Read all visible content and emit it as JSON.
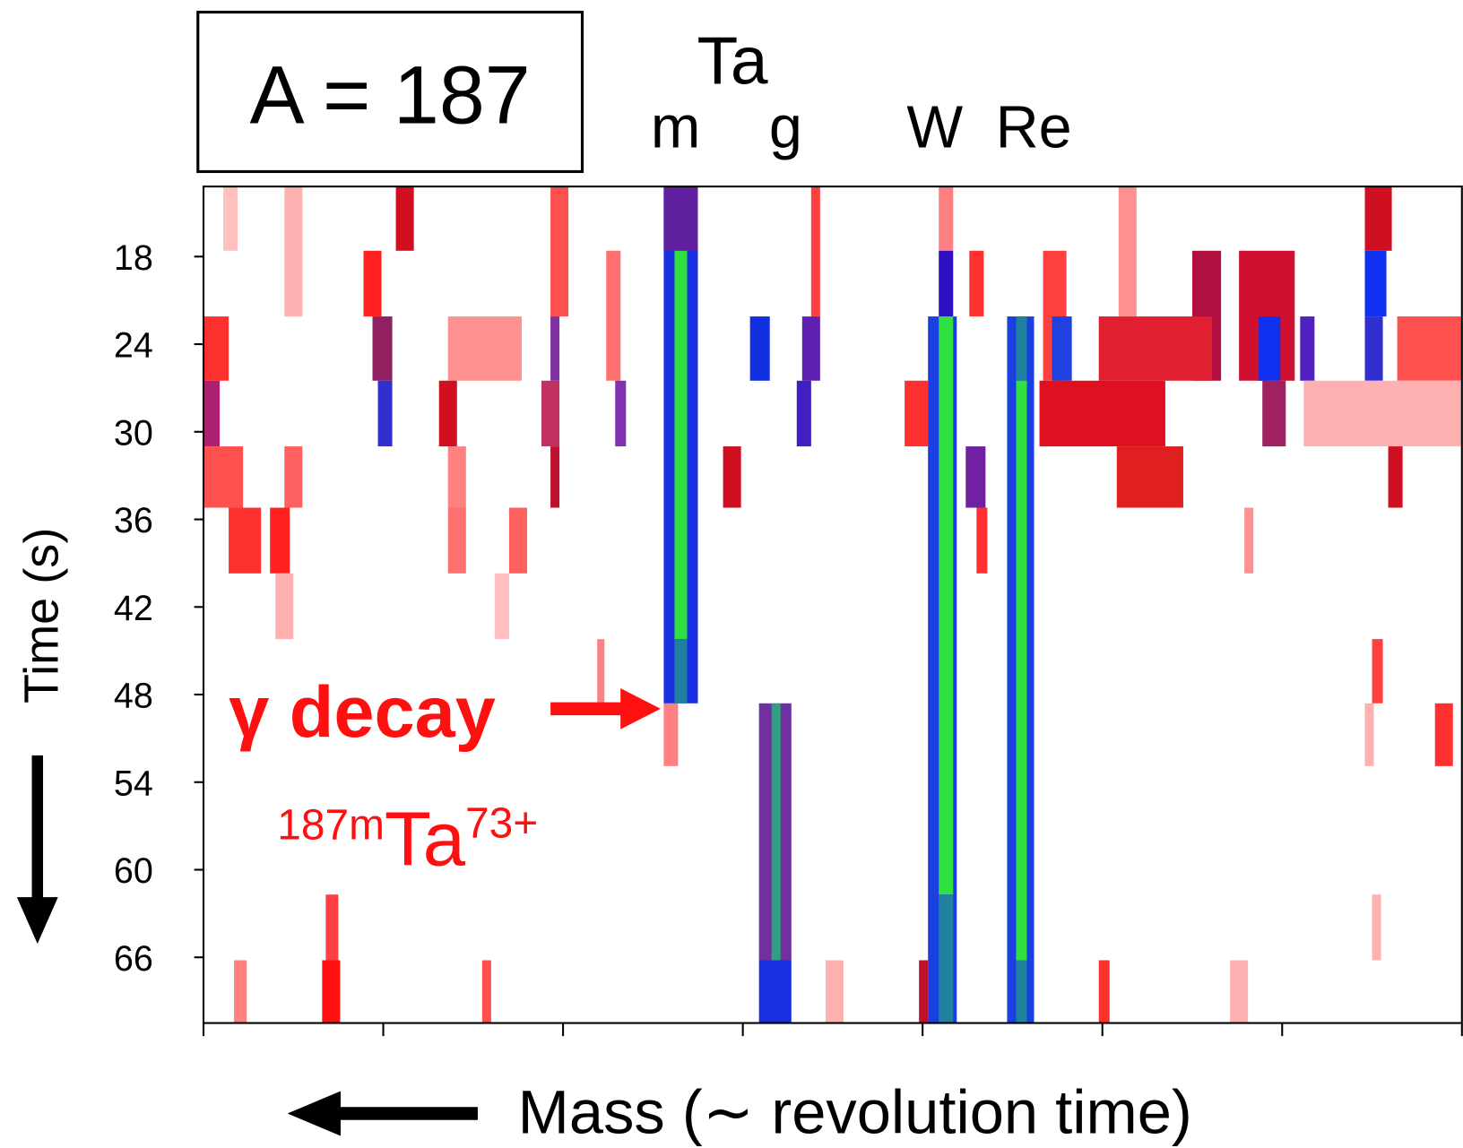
{
  "chart_data": {
    "type": "heatmap",
    "panel_label": "A = 187",
    "element_labels": {
      "ta": "Ta",
      "m": "m",
      "g": "g",
      "w": "W",
      "re": "Re"
    },
    "y_label": "Time (s)",
    "x_label": "Mass (∼ revolution time)",
    "annotation": "γ decay",
    "isotope": {
      "mass": "187m",
      "symbol": "Ta",
      "charge": "73+"
    },
    "ylim": [
      13.2,
      70.5
    ],
    "yticks": [
      18,
      24,
      30,
      36,
      42,
      48,
      54,
      60,
      66
    ],
    "xlim": [
      0,
      7
    ],
    "xticks": [
      0,
      1,
      2,
      3,
      4,
      5,
      6,
      7
    ],
    "cells": [
      {
        "x": [
          1.07,
          1.17
        ],
        "t": [
          13.2,
          17.6
        ],
        "color": "#d01020"
      },
      {
        "x": [
          0.11,
          0.19
        ],
        "t": [
          13.2,
          17.6
        ],
        "color": "#ffc0c0"
      },
      {
        "x": [
          0.45,
          0.55
        ],
        "t": [
          13.2,
          22.1
        ],
        "color": "#ffb0b0"
      },
      {
        "x": [
          1.93,
          2.03
        ],
        "t": [
          13.2,
          22.1
        ],
        "color": "#ff5050"
      },
      {
        "x": [
          3.38,
          3.43
        ],
        "t": [
          13.2,
          22.1
        ],
        "color": "#ff4040"
      },
      {
        "x": [
          5.09,
          5.19
        ],
        "t": [
          13.2,
          22.1
        ],
        "color": "#ff9090"
      },
      {
        "x": [
          6.46,
          6.61
        ],
        "t": [
          13.2,
          17.6
        ],
        "color": "#d01020"
      },
      {
        "x": [
          4.09,
          4.17
        ],
        "t": [
          13.2,
          17.6
        ],
        "color": "#ff8080"
      },
      {
        "x": [
          0.89,
          0.99
        ],
        "t": [
          17.6,
          22.1
        ],
        "color": "#ff2020"
      },
      {
        "x": [
          2.24,
          2.32
        ],
        "t": [
          17.6,
          26.5
        ],
        "color": "#ff7070"
      },
      {
        "x": [
          5.5,
          5.66
        ],
        "t": [
          17.6,
          26.5
        ],
        "color": "#b01040"
      },
      {
        "x": [
          5.76,
          6.07
        ],
        "t": [
          17.6,
          26.5
        ],
        "color": "#d01030"
      },
      {
        "x": [
          6.46,
          6.58
        ],
        "t": [
          17.6,
          22.1
        ],
        "color": "#1030f0"
      },
      {
        "x": [
          4.26,
          4.34
        ],
        "t": [
          17.6,
          22.1
        ],
        "color": "#ff3030"
      },
      {
        "x": [
          4.67,
          4.8
        ],
        "t": [
          17.6,
          26.5
        ],
        "color": "#ff4040"
      },
      {
        "x": [
          0,
          0.14
        ],
        "t": [
          22.1,
          26.5
        ],
        "color": "#ff3030"
      },
      {
        "x": [
          0.94,
          1.05
        ],
        "t": [
          22.1,
          26.5
        ],
        "color": "#902060"
      },
      {
        "x": [
          1.36,
          1.77
        ],
        "t": [
          22.1,
          26.5
        ],
        "color": "#ff9090"
      },
      {
        "x": [
          1.93,
          1.98
        ],
        "t": [
          22.1,
          26.5
        ],
        "color": "#8030a0"
      },
      {
        "x": [
          3.04,
          3.15
        ],
        "t": [
          22.1,
          26.5
        ],
        "color": "#1030e0"
      },
      {
        "x": [
          3.33,
          3.43
        ],
        "t": [
          22.1,
          26.5
        ],
        "color": "#6020b0"
      },
      {
        "x": [
          4.72,
          4.83
        ],
        "t": [
          22.1,
          26.5
        ],
        "color": "#2040e0"
      },
      {
        "x": [
          4.98,
          5.61
        ],
        "t": [
          22.1,
          26.5
        ],
        "color": "#e02030"
      },
      {
        "x": [
          5.87,
          5.99
        ],
        "t": [
          22.1,
          26.5
        ],
        "color": "#1030f0"
      },
      {
        "x": [
          6.1,
          6.18
        ],
        "t": [
          22.1,
          26.5
        ],
        "color": "#5020c0"
      },
      {
        "x": [
          6.46,
          6.56
        ],
        "t": [
          22.1,
          26.5
        ],
        "color": "#3030d0"
      },
      {
        "x": [
          6.64,
          7
        ],
        "t": [
          22.1,
          26.5
        ],
        "color": "#ff5050"
      },
      {
        "x": [
          0,
          0.09
        ],
        "t": [
          26.5,
          31.0
        ],
        "color": "#b02070"
      },
      {
        "x": [
          0.97,
          1.05
        ],
        "t": [
          26.5,
          31.0
        ],
        "color": "#3030d0"
      },
      {
        "x": [
          1.31,
          1.41
        ],
        "t": [
          26.5,
          31.0
        ],
        "color": "#d01020"
      },
      {
        "x": [
          1.88,
          1.98
        ],
        "t": [
          26.5,
          31.0
        ],
        "color": "#c03060"
      },
      {
        "x": [
          2.29,
          2.35
        ],
        "t": [
          26.5,
          31.0
        ],
        "color": "#8030b0"
      },
      {
        "x": [
          3.3,
          3.38
        ],
        "t": [
          26.5,
          31.0
        ],
        "color": "#4020c0"
      },
      {
        "x": [
          3.9,
          4.03
        ],
        "t": [
          26.5,
          31.0
        ],
        "color": "#ff3030"
      },
      {
        "x": [
          4.65,
          5.35
        ],
        "t": [
          26.5,
          31.0
        ],
        "color": "#e01020"
      },
      {
        "x": [
          5.89,
          6.02
        ],
        "t": [
          26.5,
          31.0
        ],
        "color": "#a02060"
      },
      {
        "x": [
          6.12,
          7
        ],
        "t": [
          26.5,
          31.0
        ],
        "color": "#ffb0b0"
      },
      {
        "x": [
          0,
          0.22
        ],
        "t": [
          31.0,
          35.2
        ],
        "color": "#ff5050"
      },
      {
        "x": [
          0.45,
          0.55
        ],
        "t": [
          31.0,
          35.2
        ],
        "color": "#ff6060"
      },
      {
        "x": [
          1.36,
          1.46
        ],
        "t": [
          31.0,
          35.2
        ],
        "color": "#ff8080"
      },
      {
        "x": [
          1.93,
          1.98
        ],
        "t": [
          31.0,
          35.2
        ],
        "color": "#c01030"
      },
      {
        "x": [
          2.89,
          2.99
        ],
        "t": [
          31.0,
          35.2
        ],
        "color": "#d01020"
      },
      {
        "x": [
          4.24,
          4.35
        ],
        "t": [
          31.0,
          35.2
        ],
        "color": "#7020a0"
      },
      {
        "x": [
          5.08,
          5.45
        ],
        "t": [
          31.0,
          35.2
        ],
        "color": "#e02020"
      },
      {
        "x": [
          6.59,
          6.67
        ],
        "t": [
          31.0,
          35.2
        ],
        "color": "#d01020"
      },
      {
        "x": [
          0.14,
          0.32
        ],
        "t": [
          35.2,
          39.7
        ],
        "color": "#ff3030"
      },
      {
        "x": [
          0.37,
          0.48
        ],
        "t": [
          35.2,
          39.7
        ],
        "color": "#ff2020"
      },
      {
        "x": [
          1.36,
          1.46
        ],
        "t": [
          35.2,
          39.7
        ],
        "color": "#ff7070"
      },
      {
        "x": [
          1.7,
          1.8
        ],
        "t": [
          35.2,
          39.7
        ],
        "color": "#ff6060"
      },
      {
        "x": [
          4.3,
          4.36
        ],
        "t": [
          35.2,
          39.7
        ],
        "color": "#ff3030"
      },
      {
        "x": [
          5.79,
          5.84
        ],
        "t": [
          35.2,
          39.7
        ],
        "color": "#ff9090"
      },
      {
        "x": [
          0.4,
          0.5
        ],
        "t": [
          39.7,
          44.2
        ],
        "color": "#ffb0b0"
      },
      {
        "x": [
          1.62,
          1.7
        ],
        "t": [
          39.7,
          44.2
        ],
        "color": "#ffc0c0"
      },
      {
        "x": [
          2.19,
          2.23
        ],
        "t": [
          44.2,
          48.6
        ],
        "color": "#ff8080"
      },
      {
        "x": [
          6.5,
          6.56
        ],
        "t": [
          44.2,
          48.6
        ],
        "color": "#ff4040"
      },
      {
        "x": [
          2.56,
          2.64
        ],
        "t": [
          48.6,
          52.9
        ],
        "color": "#ff8080"
      },
      {
        "x": [
          6.85,
          6.95
        ],
        "t": [
          48.6,
          52.9
        ],
        "color": "#ff3030"
      },
      {
        "x": [
          6.46,
          6.51
        ],
        "t": [
          48.6,
          52.9
        ],
        "color": "#ffb0b0"
      },
      {
        "x": [
          0.68,
          0.75
        ],
        "t": [
          61.7,
          66.2
        ],
        "color": "#ff4040"
      },
      {
        "x": [
          6.5,
          6.55
        ],
        "t": [
          61.7,
          66.2
        ],
        "color": "#ffb0b0"
      },
      {
        "x": [
          0.66,
          0.76
        ],
        "t": [
          66.2,
          70.5
        ],
        "color": "#ff1010"
      },
      {
        "x": [
          0.17,
          0.24
        ],
        "t": [
          66.2,
          70.5
        ],
        "color": "#ff8080"
      },
      {
        "x": [
          1.55,
          1.6
        ],
        "t": [
          66.2,
          70.5
        ],
        "color": "#ff5050"
      },
      {
        "x": [
          3.46,
          3.56
        ],
        "t": [
          66.2,
          70.5
        ],
        "color": "#ffb0b0"
      },
      {
        "x": [
          3.98,
          4.03
        ],
        "t": [
          66.2,
          70.5
        ],
        "color": "#c01030"
      },
      {
        "x": [
          4.98,
          5.04
        ],
        "t": [
          66.2,
          70.5
        ],
        "color": "#ff3030"
      },
      {
        "x": [
          5.71,
          5.81
        ],
        "t": [
          66.2,
          70.5
        ],
        "color": "#ffb0b0"
      },
      {
        "x": [
          2.56,
          2.75
        ],
        "t": [
          13.2,
          48.6
        ],
        "color": "#1a30e0"
      },
      {
        "x": [
          2.56,
          2.75
        ],
        "t": [
          13.2,
          17.6
        ],
        "color": "#6020a0"
      },
      {
        "x": [
          2.62,
          2.69
        ],
        "t": [
          17.6,
          44.2
        ],
        "color": "#30e040"
      },
      {
        "x": [
          2.62,
          2.69
        ],
        "t": [
          44.2,
          48.6
        ],
        "color": "#2080a0"
      },
      {
        "x": [
          3.09,
          3.27
        ],
        "t": [
          48.6,
          66.2
        ],
        "color": "#7030a0"
      },
      {
        "x": [
          3.09,
          3.27
        ],
        "t": [
          66.2,
          70.5
        ],
        "color": "#1a30e0"
      },
      {
        "x": [
          3.16,
          3.21
        ],
        "t": [
          48.6,
          66.2
        ],
        "color": "#30a080"
      },
      {
        "x": [
          4.09,
          4.17
        ],
        "t": [
          17.6,
          22.1
        ],
        "color": "#3010c0"
      },
      {
        "x": [
          4.03,
          4.19
        ],
        "t": [
          22.1,
          70.5
        ],
        "color": "#1a40e0"
      },
      {
        "x": [
          4.09,
          4.17
        ],
        "t": [
          22.1,
          61.7
        ],
        "color": "#30e040"
      },
      {
        "x": [
          4.09,
          4.17
        ],
        "t": [
          61.7,
          70.5
        ],
        "color": "#2080a0"
      },
      {
        "x": [
          4.47,
          4.62
        ],
        "t": [
          22.1,
          70.5
        ],
        "color": "#1a40e0"
      },
      {
        "x": [
          4.52,
          4.58
        ],
        "t": [
          22.1,
          26.5
        ],
        "color": "#2080a0"
      },
      {
        "x": [
          4.52,
          4.58
        ],
        "t": [
          26.5,
          66.2
        ],
        "color": "#30e040"
      },
      {
        "x": [
          4.52,
          4.58
        ],
        "t": [
          66.2,
          70.5
        ],
        "color": "#2080a0"
      }
    ]
  }
}
